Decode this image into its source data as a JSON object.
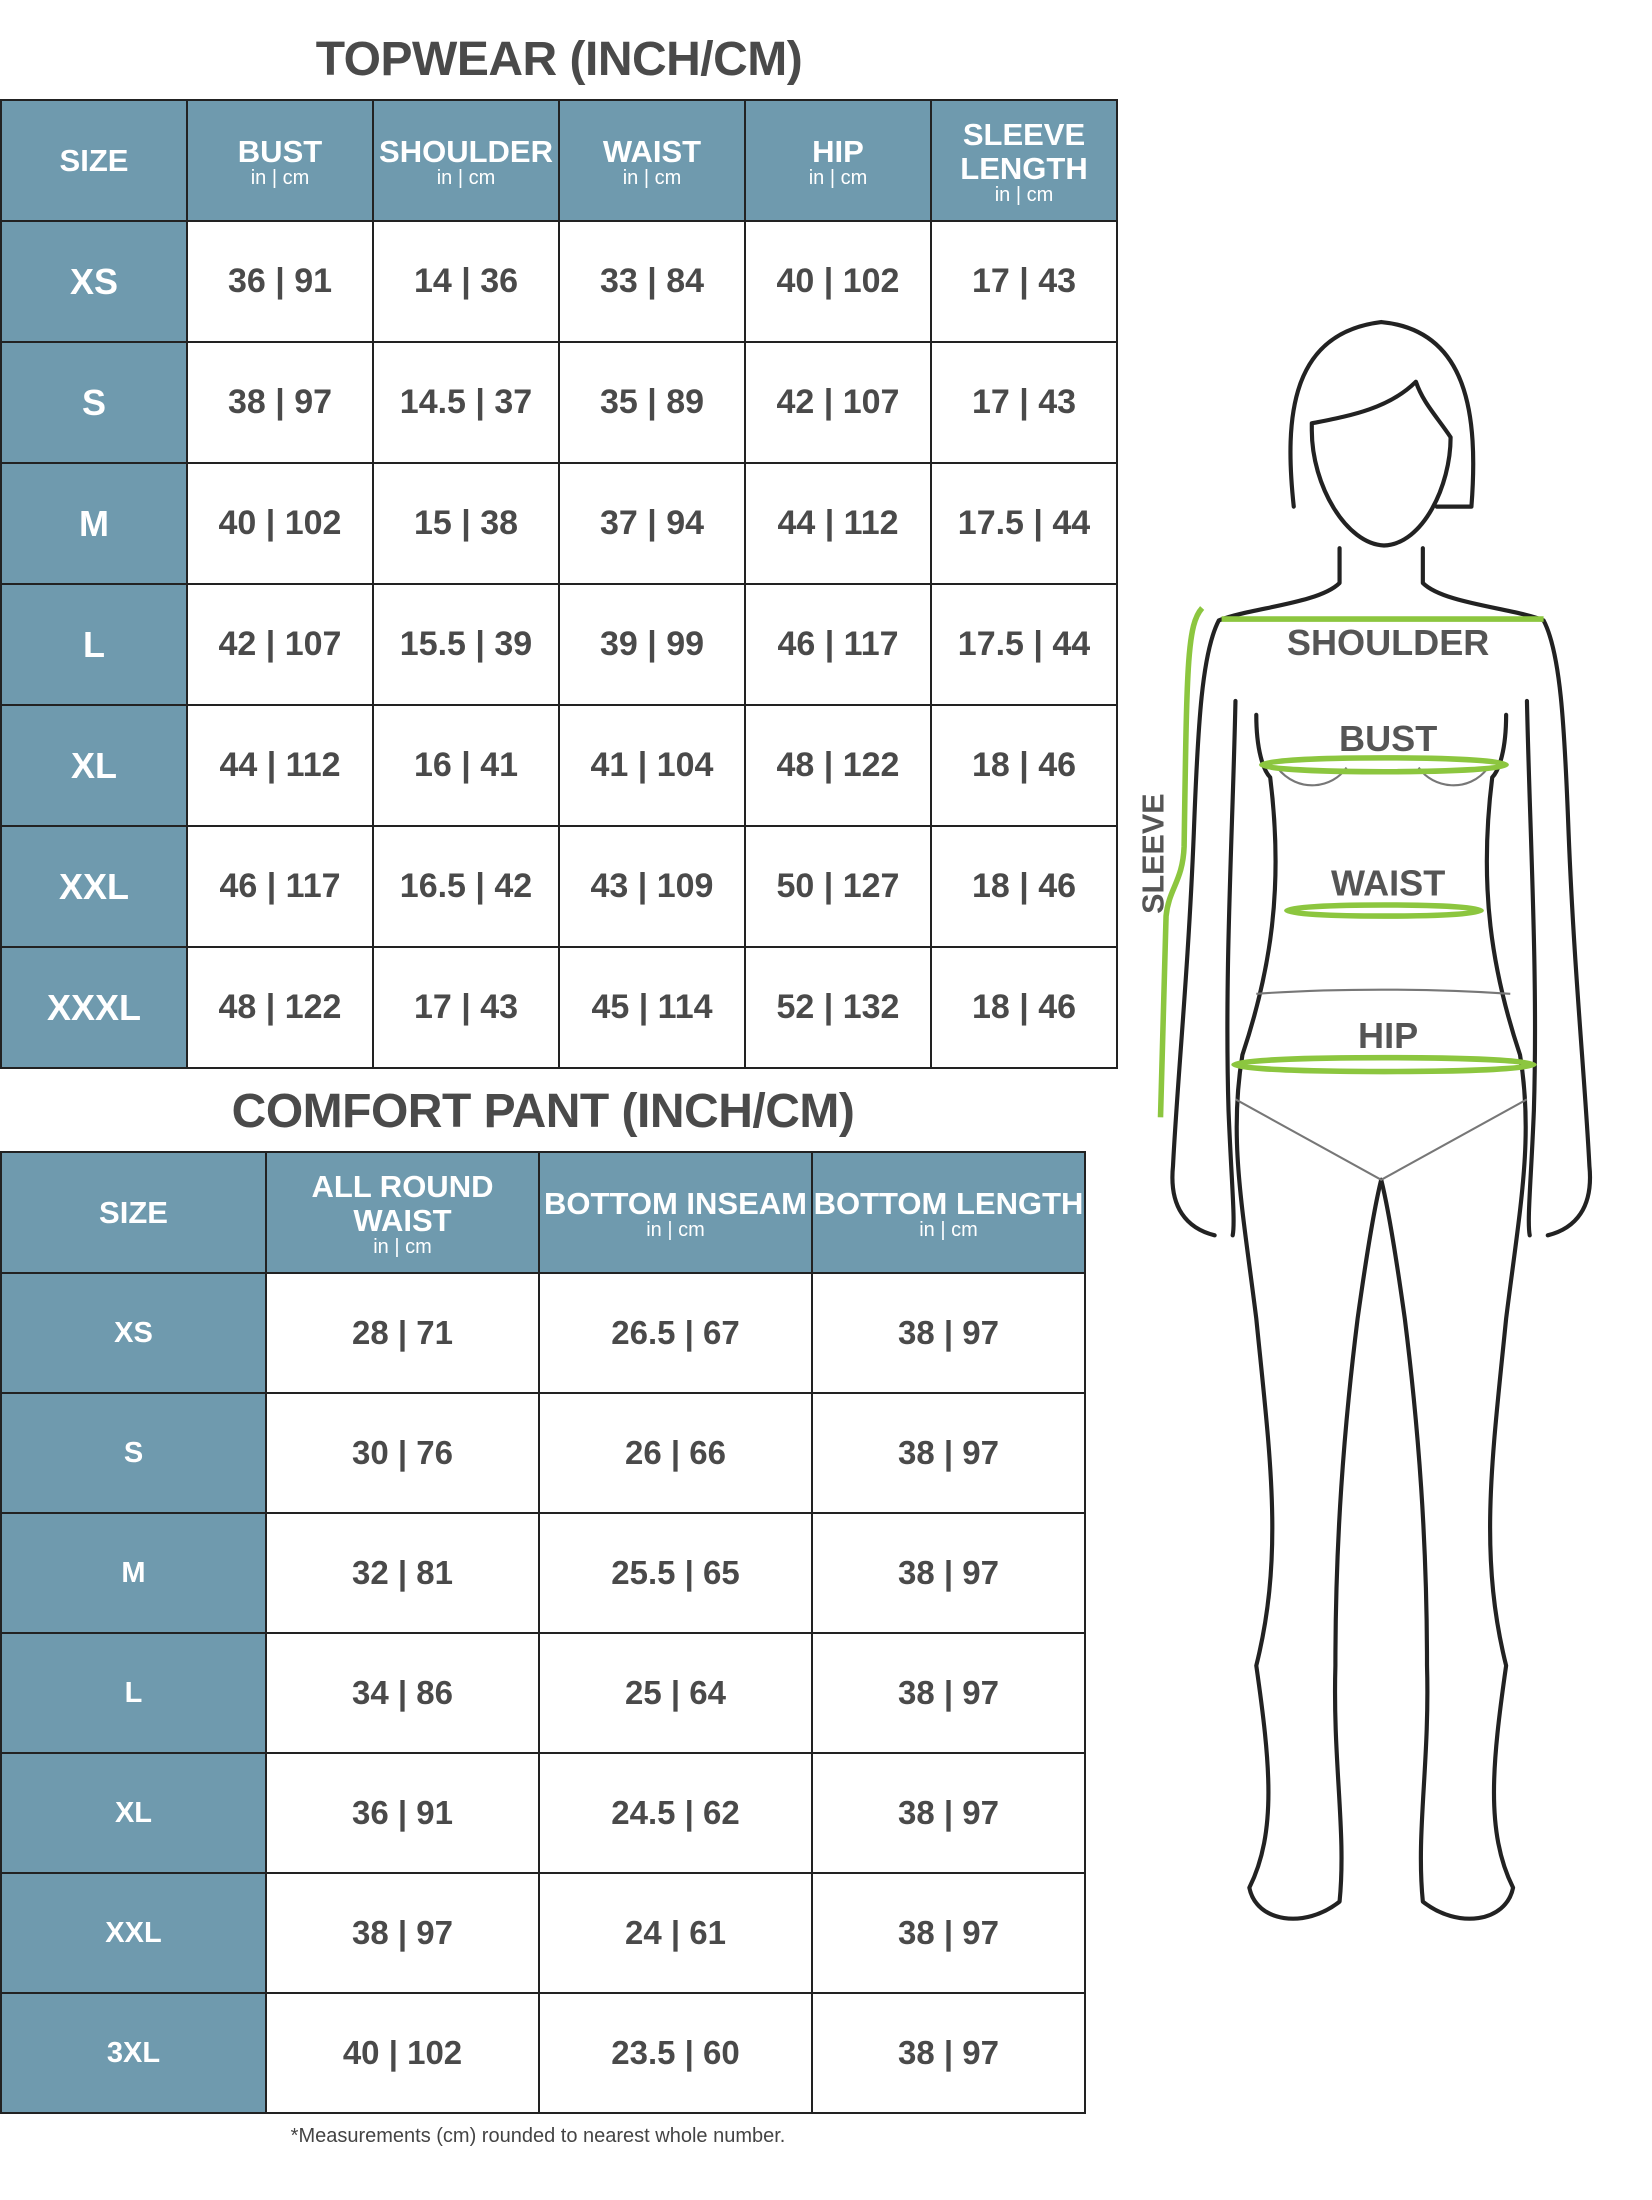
{
  "topwear": {
    "title": "TOPWEAR (INCH/CM)",
    "unit_label": "in | cm",
    "columns": [
      "SIZE",
      "BUST",
      "SHOULDER",
      "WAIST",
      "HIP",
      "SLEEVE LENGTH"
    ],
    "rows": [
      {
        "size": "XS",
        "values": [
          "36 | 91",
          "14 | 36",
          "33 | 84",
          "40 | 102",
          "17 | 43"
        ]
      },
      {
        "size": "S",
        "values": [
          "38 | 97",
          "14.5 | 37",
          "35 | 89",
          "42 | 107",
          "17 | 43"
        ]
      },
      {
        "size": "M",
        "values": [
          "40 | 102",
          "15 | 38",
          "37 | 94",
          "44 | 112",
          "17.5 | 44"
        ]
      },
      {
        "size": "L",
        "values": [
          "42 | 107",
          "15.5 | 39",
          "39 | 99",
          "46 | 117",
          "17.5 | 44"
        ]
      },
      {
        "size": "XL",
        "values": [
          "44 | 112",
          "16 | 41",
          "41 | 104",
          "48 | 122",
          "18 | 46"
        ]
      },
      {
        "size": "XXL",
        "values": [
          "46 | 117",
          "16.5 | 42",
          "43 | 109",
          "50 | 127",
          "18 | 46"
        ]
      },
      {
        "size": "XXXL",
        "values": [
          "48 | 122",
          "17 | 43",
          "45 | 114",
          "52 | 132",
          "18 | 46"
        ]
      }
    ]
  },
  "pant": {
    "title": "COMFORT PANT (INCH/CM)",
    "unit_label": "in | cm",
    "columns": [
      "SIZE",
      "ALL ROUND WAIST",
      "BOTTOM INSEAM",
      "BOTTOM LENGTH"
    ],
    "rows": [
      {
        "size": "XS",
        "values": [
          "28 | 71",
          "26.5 | 67",
          "38 | 97"
        ]
      },
      {
        "size": "S",
        "values": [
          "30 | 76",
          "26 | 66",
          "38 | 97"
        ]
      },
      {
        "size": "M",
        "values": [
          "32 | 81",
          "25.5 | 65",
          "38 | 97"
        ]
      },
      {
        "size": "L",
        "values": [
          "34 | 86",
          "25 | 64",
          "38 | 97"
        ]
      },
      {
        "size": "XL",
        "values": [
          "36 | 91",
          "24.5 | 62",
          "38 | 97"
        ]
      },
      {
        "size": "XXL",
        "values": [
          "38 | 97",
          "24 | 61",
          "38 | 97"
        ]
      },
      {
        "size": "3XL",
        "values": [
          "40 | 102",
          "23.5 | 60",
          "38 | 97"
        ]
      }
    ]
  },
  "figure": {
    "labels": {
      "shoulder": "SHOULDER",
      "bust": "BUST",
      "waist": "WAIST",
      "hip": "HIP",
      "sleeve": "SLEEVE"
    },
    "measure_color": "#8cc63f",
    "outline_color": "#222222"
  },
  "footnote": "*Measurements (cm) rounded to nearest whole number.",
  "colors": {
    "header_bg": "#6f9aae",
    "text": "#4a4a4a"
  }
}
